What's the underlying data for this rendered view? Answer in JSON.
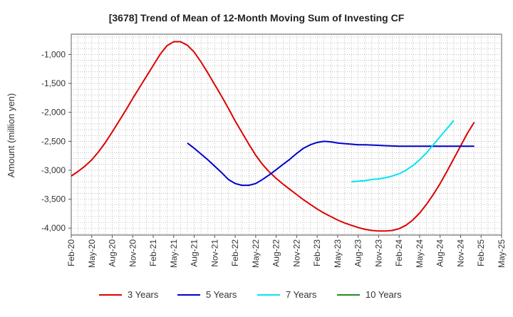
{
  "chart_data": {
    "type": "line",
    "title": "[3678]  Trend of Mean of 12-Month Moving Sum of Investing CF",
    "xlabel": "",
    "ylabel": "Amount (million yen)",
    "x_ticks": [
      "Feb-20",
      "May-20",
      "Aug-20",
      "Nov-20",
      "Feb-21",
      "May-21",
      "Aug-21",
      "Nov-21",
      "Feb-22",
      "May-22",
      "Aug-22",
      "Nov-22",
      "Feb-23",
      "May-23",
      "Aug-23",
      "Nov-23",
      "Feb-24",
      "May-24",
      "Aug-24",
      "Nov-24",
      "Feb-25",
      "May-25"
    ],
    "y_ticks": [
      -1000,
      -1500,
      -2000,
      -2500,
      -3000,
      -3500,
      -4000
    ],
    "y_tick_labels": [
      "-1,000",
      "-1,500",
      "-2,000",
      "-2,500",
      "-3,000",
      "-3,500",
      "-4,000"
    ],
    "ylim": [
      -4120,
      -650
    ],
    "grid": true,
    "legend_position": "bottom",
    "series": [
      {
        "name": "3 Years",
        "color": "#dd0000",
        "points": [
          [
            "Feb-20",
            -3100
          ],
          [
            "Mar-20",
            -3020
          ],
          [
            "Apr-20",
            -2930
          ],
          [
            "May-20",
            -2820
          ],
          [
            "Jun-20",
            -2680
          ],
          [
            "Jul-20",
            -2520
          ],
          [
            "Aug-20",
            -2340
          ],
          [
            "Sep-20",
            -2150
          ],
          [
            "Oct-20",
            -1960
          ],
          [
            "Nov-20",
            -1760
          ],
          [
            "Dec-20",
            -1570
          ],
          [
            "Jan-21",
            -1380
          ],
          [
            "Feb-21",
            -1190
          ],
          [
            "Mar-21",
            -1000
          ],
          [
            "Apr-21",
            -850
          ],
          [
            "May-21",
            -780
          ],
          [
            "Jun-21",
            -780
          ],
          [
            "Jul-21",
            -840
          ],
          [
            "Aug-21",
            -960
          ],
          [
            "Sep-21",
            -1130
          ],
          [
            "Oct-21",
            -1320
          ],
          [
            "Nov-21",
            -1520
          ],
          [
            "Dec-21",
            -1720
          ],
          [
            "Jan-22",
            -1930
          ],
          [
            "Feb-22",
            -2150
          ],
          [
            "Mar-22",
            -2350
          ],
          [
            "Apr-22",
            -2550
          ],
          [
            "May-22",
            -2740
          ],
          [
            "Jun-22",
            -2900
          ],
          [
            "Jul-22",
            -3030
          ],
          [
            "Aug-22",
            -3140
          ],
          [
            "Sep-22",
            -3240
          ],
          [
            "Oct-22",
            -3330
          ],
          [
            "Nov-22",
            -3420
          ],
          [
            "Dec-22",
            -3510
          ],
          [
            "Jan-23",
            -3590
          ],
          [
            "Feb-23",
            -3670
          ],
          [
            "Mar-23",
            -3740
          ],
          [
            "Apr-23",
            -3800
          ],
          [
            "May-23",
            -3860
          ],
          [
            "Jun-23",
            -3910
          ],
          [
            "Jul-23",
            -3950
          ],
          [
            "Aug-23",
            -3990
          ],
          [
            "Sep-23",
            -4020
          ],
          [
            "Oct-23",
            -4040
          ],
          [
            "Nov-23",
            -4050
          ],
          [
            "Dec-23",
            -4050
          ],
          [
            "Jan-24",
            -4040
          ],
          [
            "Feb-24",
            -4010
          ],
          [
            "Mar-24",
            -3950
          ],
          [
            "Apr-24",
            -3860
          ],
          [
            "May-24",
            -3740
          ],
          [
            "Jun-24",
            -3590
          ],
          [
            "Jul-24",
            -3420
          ],
          [
            "Aug-24",
            -3230
          ],
          [
            "Sep-24",
            -3020
          ],
          [
            "Oct-24",
            -2800
          ],
          [
            "Nov-24",
            -2580
          ],
          [
            "Dec-24",
            -2360
          ],
          [
            "Jan-25",
            -2170
          ]
        ]
      },
      {
        "name": "5 Years",
        "color": "#0000cc",
        "points": [
          [
            "Jul-21",
            -2530
          ],
          [
            "Aug-21",
            -2620
          ],
          [
            "Sep-21",
            -2720
          ],
          [
            "Oct-21",
            -2820
          ],
          [
            "Nov-21",
            -2930
          ],
          [
            "Dec-21",
            -3040
          ],
          [
            "Jan-22",
            -3160
          ],
          [
            "Feb-22",
            -3230
          ],
          [
            "Mar-22",
            -3260
          ],
          [
            "Apr-22",
            -3260
          ],
          [
            "May-22",
            -3230
          ],
          [
            "Jun-22",
            -3160
          ],
          [
            "Jul-22",
            -3080
          ],
          [
            "Aug-22",
            -2990
          ],
          [
            "Sep-22",
            -2900
          ],
          [
            "Oct-22",
            -2810
          ],
          [
            "Nov-22",
            -2710
          ],
          [
            "Dec-22",
            -2620
          ],
          [
            "Jan-23",
            -2560
          ],
          [
            "Feb-23",
            -2520
          ],
          [
            "Mar-23",
            -2500
          ],
          [
            "Apr-23",
            -2510
          ],
          [
            "May-23",
            -2530
          ],
          [
            "Jun-23",
            -2540
          ],
          [
            "Jul-23",
            -2550
          ],
          [
            "Aug-23",
            -2560
          ],
          [
            "Sep-23",
            -2560
          ],
          [
            "Oct-23",
            -2565
          ],
          [
            "Nov-23",
            -2570
          ],
          [
            "Dec-23",
            -2575
          ],
          [
            "Jan-24",
            -2580
          ],
          [
            "Feb-24",
            -2585
          ],
          [
            "Mar-24",
            -2585
          ],
          [
            "Apr-24",
            -2585
          ],
          [
            "May-24",
            -2585
          ],
          [
            "Jun-24",
            -2585
          ],
          [
            "Jul-24",
            -2585
          ],
          [
            "Aug-24",
            -2585
          ],
          [
            "Sep-24",
            -2585
          ],
          [
            "Oct-24",
            -2585
          ],
          [
            "Nov-24",
            -2585
          ],
          [
            "Dec-24",
            -2585
          ],
          [
            "Jan-25",
            -2585
          ]
        ]
      },
      {
        "name": "7 Years",
        "color": "#00e5ee",
        "points": [
          [
            "Jul-23",
            -3200
          ],
          [
            "Aug-23",
            -3190
          ],
          [
            "Sep-23",
            -3180
          ],
          [
            "Oct-23",
            -3160
          ],
          [
            "Nov-23",
            -3150
          ],
          [
            "Dec-23",
            -3130
          ],
          [
            "Jan-24",
            -3100
          ],
          [
            "Feb-24",
            -3060
          ],
          [
            "Mar-24",
            -3000
          ],
          [
            "Apr-24",
            -2920
          ],
          [
            "May-24",
            -2820
          ],
          [
            "Jun-24",
            -2700
          ],
          [
            "Jul-24",
            -2560
          ],
          [
            "Aug-24",
            -2420
          ],
          [
            "Sep-24",
            -2280
          ],
          [
            "Oct-24",
            -2140
          ]
        ]
      },
      {
        "name": "10 Years",
        "color": "#228b22",
        "points": []
      }
    ]
  }
}
